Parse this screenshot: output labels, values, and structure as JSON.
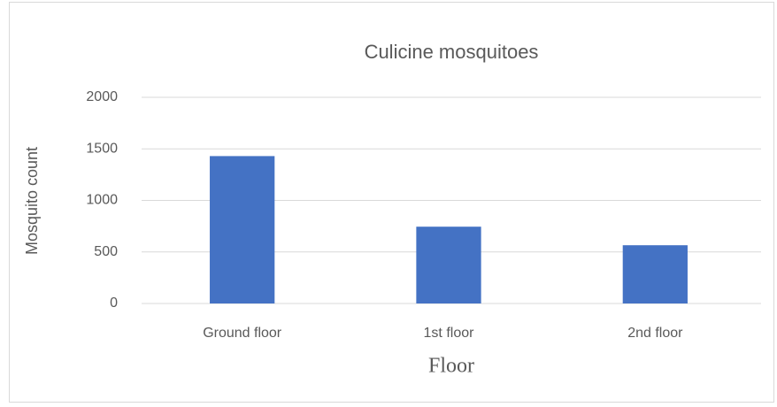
{
  "chart_data": {
    "type": "bar",
    "title": "Culicine mosquitoes",
    "y_label": "Mosquito count",
    "x_label": "Floor",
    "categories": [
      "Ground floor",
      "1st floor",
      "2nd floor"
    ],
    "values": [
      1430,
      745,
      565
    ],
    "color": "#4472c4",
    "ylim": [
      0,
      2000
    ],
    "yticks": [
      0,
      500,
      1000,
      1500,
      2000
    ],
    "grid": true
  }
}
